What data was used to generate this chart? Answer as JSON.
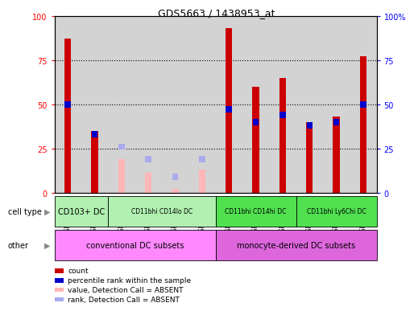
{
  "title": "GDS5663 / 1438953_at",
  "samples": [
    "GSM1582752",
    "GSM1582753",
    "GSM1582754",
    "GSM1582755",
    "GSM1582756",
    "GSM1582757",
    "GSM1582758",
    "GSM1582759",
    "GSM1582760",
    "GSM1582761",
    "GSM1582762",
    "GSM1582763"
  ],
  "count_values": [
    87,
    35,
    null,
    null,
    null,
    null,
    93,
    60,
    65,
    40,
    43,
    77
  ],
  "rank_values": [
    50,
    33,
    null,
    null,
    null,
    null,
    47,
    40,
    44,
    38,
    40,
    50
  ],
  "absent_count_values": [
    null,
    null,
    19,
    11,
    2,
    13,
    null,
    null,
    null,
    null,
    null,
    null
  ],
  "absent_rank_values": [
    null,
    null,
    26,
    19,
    9,
    19,
    null,
    null,
    null,
    null,
    null,
    null
  ],
  "ylim": [
    0,
    100
  ],
  "grid_values": [
    25,
    50,
    75
  ],
  "bar_width": 0.25,
  "count_color": "#cc0000",
  "rank_color": "#0000cc",
  "absent_count_color": "#ffb6b6",
  "absent_rank_color": "#aaaaee",
  "bg_color": "#d3d3d3",
  "plot_bg": "#ffffff",
  "cell_type_groups": [
    {
      "label": "CD103+ DC",
      "start": 0,
      "end": 2,
      "color": "#b0f0b0",
      "fontsize": 7
    },
    {
      "label": "CD11bhi CD14lo DC",
      "start": 2,
      "end": 6,
      "color": "#b0f0b0",
      "fontsize": 5.5
    },
    {
      "label": "CD11bhi CD14hi DC",
      "start": 6,
      "end": 9,
      "color": "#50e050",
      "fontsize": 5.5
    },
    {
      "label": "CD11bhi Ly6Chi DC",
      "start": 9,
      "end": 12,
      "color": "#50e050",
      "fontsize": 5.5
    }
  ],
  "other_groups": [
    {
      "label": "conventional DC subsets",
      "start": 0,
      "end": 6,
      "color": "#ff88ff",
      "fontsize": 7
    },
    {
      "label": "monocyte-derived DC subsets",
      "start": 6,
      "end": 12,
      "color": "#dd66dd",
      "fontsize": 7
    }
  ],
  "legend_items": [
    {
      "label": "count",
      "color": "#cc0000"
    },
    {
      "label": "percentile rank within the sample",
      "color": "#0000cc"
    },
    {
      "label": "value, Detection Call = ABSENT",
      "color": "#ffb6b6"
    },
    {
      "label": "rank, Detection Call = ABSENT",
      "color": "#aaaaee"
    }
  ]
}
